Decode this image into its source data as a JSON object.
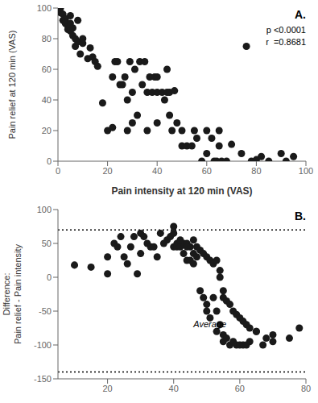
{
  "chart_data": [
    {
      "type": "scatter",
      "xlabel": "Pain intensity at 120 min (VAS)",
      "ylabel": "Pain relief at 120 min (VAS)",
      "x": [
        0,
        0,
        1,
        1,
        2,
        2,
        3,
        3,
        3,
        4,
        4,
        5,
        5,
        5,
        6,
        6,
        7,
        7,
        8,
        8,
        9,
        10,
        10,
        12,
        13,
        14,
        15,
        16,
        18,
        20,
        22,
        22,
        23,
        24,
        25,
        26,
        27,
        28,
        28,
        29,
        30,
        30,
        31,
        32,
        33,
        34,
        35,
        36,
        36,
        37,
        38,
        39,
        40,
        40,
        40,
        42,
        43,
        44,
        44,
        45,
        45,
        46,
        47,
        48,
        50,
        50,
        52,
        54,
        55,
        56,
        58,
        60,
        60,
        62,
        63,
        64,
        65,
        65,
        66,
        68,
        70,
        74,
        76,
        78,
        80,
        82,
        85,
        90,
        92,
        95
      ],
      "y": [
        100,
        98,
        100,
        97,
        96,
        92,
        93,
        91,
        90,
        88,
        86,
        95,
        90,
        85,
        87,
        82,
        80,
        75,
        92,
        78,
        70,
        80,
        77,
        67,
        74,
        68,
        65,
        62,
        38,
        20,
        55,
        22,
        65,
        65,
        50,
        50,
        55,
        40,
        20,
        65,
        45,
        25,
        60,
        30,
        65,
        50,
        65,
        45,
        20,
        55,
        45,
        55,
        55,
        45,
        25,
        45,
        40,
        45,
        60,
        45,
        30,
        20,
        46,
        25,
        20,
        10,
        10,
        10,
        20,
        15,
        0,
        20,
        5,
        15,
        0,
        0,
        20,
        10,
        0,
        0,
        11,
        5,
        75,
        0,
        1,
        3,
        0,
        5,
        0,
        3
      ],
      "xlim": [
        0,
        100
      ],
      "ylim": [
        0,
        100
      ],
      "xticks": [
        0,
        20,
        40,
        60,
        80,
        100
      ],
      "yticks": [
        0,
        20,
        40,
        60,
        80,
        100
      ],
      "color": "#1a1a1a",
      "grid": false,
      "annotations": [
        {
          "text": "A."
        },
        {
          "text": "p <0.0001"
        },
        {
          "text": "r  =0.8681"
        }
      ]
    },
    {
      "type": "scatter",
      "ylabel": "Difference:\nPain relief - Pain intensity",
      "x": [
        10,
        15,
        20,
        20,
        22,
        23,
        24,
        25,
        26,
        27,
        28,
        29,
        30,
        30,
        31,
        32,
        33,
        34,
        35,
        36,
        37,
        38,
        39,
        40,
        40,
        41,
        41,
        42,
        43,
        43,
        44,
        44,
        45,
        45,
        46,
        46,
        47,
        48,
        49,
        50,
        50,
        51,
        52,
        53,
        53,
        54,
        55,
        55,
        56,
        57,
        58,
        59,
        60,
        61,
        62,
        63,
        65,
        67,
        70,
        75,
        78,
        40,
        42,
        44,
        46,
        47,
        48,
        49,
        50,
        51,
        52,
        53,
        54,
        54,
        55,
        55,
        56,
        57,
        58,
        59,
        60,
        61,
        62,
        63,
        65,
        68,
        70
      ],
      "y": [
        18,
        15,
        5,
        30,
        50,
        45,
        60,
        30,
        20,
        45,
        60,
        5,
        65,
        35,
        60,
        50,
        45,
        45,
        30,
        65,
        50,
        55,
        60,
        45,
        65,
        45,
        50,
        45,
        35,
        50,
        50,
        25,
        25,
        45,
        20,
        35,
        30,
        -20,
        -30,
        -40,
        -50,
        -60,
        -30,
        -50,
        -80,
        -70,
        -85,
        -95,
        -90,
        -100,
        -95,
        -100,
        -100,
        -100,
        -100,
        -95,
        -80,
        -100,
        -95,
        -90,
        -75,
        75,
        55,
        45,
        55,
        45,
        40,
        35,
        30,
        25,
        20,
        25,
        0,
        10,
        -20,
        -30,
        -35,
        -40,
        -50,
        -55,
        -60,
        -65,
        -70,
        -75,
        -80,
        -90,
        -85
      ],
      "xlim": [
        5,
        80
      ],
      "ylim": [
        -150,
        100
      ],
      "xticks": [
        20,
        40,
        60,
        80
      ],
      "yticks": [
        -150,
        -100,
        -50,
        0,
        50,
        100
      ],
      "color": "#1a1a1a",
      "grid": false,
      "hlines": [
        {
          "y": 70,
          "line_style": "dotted"
        },
        {
          "y": -140,
          "line_style": "dotted"
        }
      ],
      "annotations": [
        {
          "text": "B."
        },
        {
          "text": "Average",
          "x": 46,
          "y": -62
        }
      ]
    }
  ]
}
